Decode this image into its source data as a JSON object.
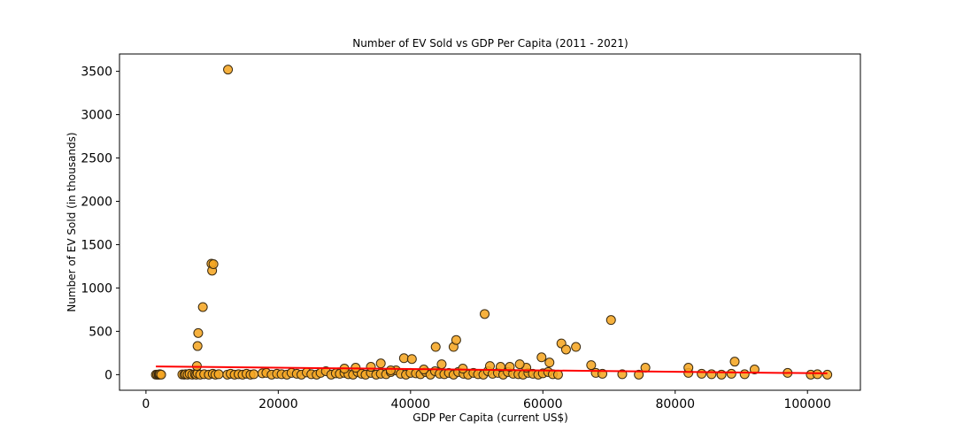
{
  "chart_data": {
    "type": "scatter",
    "title": "Number of EV Sold vs GDP Per Capita (2011 - 2021)",
    "xlabel": "GDP Per Capita (current US$)",
    "ylabel": "Number of EV Sold (in thousands)",
    "xlim": [
      -4000,
      108000
    ],
    "ylim": [
      -180,
      3700
    ],
    "xticks": [
      0,
      20000,
      40000,
      60000,
      80000,
      100000
    ],
    "yticks": [
      0,
      500,
      1000,
      1500,
      2000,
      2500,
      3000,
      3500
    ],
    "grid": false,
    "legend": "none",
    "marker_color": "#F5A623",
    "marker_edge": "#3a2a10",
    "trend_color": "#FF0000",
    "trend_line": {
      "x": [
        1500,
        103000
      ],
      "y": [
        95,
        15
      ]
    },
    "series": [
      {
        "x": [
          1500,
          1700,
          1900,
          2000,
          2100,
          2300,
          5500,
          5800,
          6000,
          6300,
          6600,
          7000,
          7400,
          7600,
          7800,
          8200,
          8800,
          9500,
          10100,
          10500,
          11000,
          12300,
          12800,
          13400,
          14000,
          14600,
          15200,
          15800,
          16300,
          17600,
          18200,
          19000,
          19800,
          20500,
          21300,
          22000,
          22800,
          23500,
          24300,
          25000,
          25800,
          26400,
          27200,
          28000,
          28700,
          29300,
          30000,
          30600,
          31300,
          32000,
          32600,
          33200,
          34000,
          34800,
          35500,
          36300,
          37000,
          37800,
          38500,
          39300,
          40000,
          40800,
          41500,
          42300,
          43000,
          43700,
          44400,
          45100,
          45800,
          46500,
          47200,
          48000,
          48700,
          49500,
          50200,
          51000,
          51700,
          52400,
          53200,
          54000,
          54700,
          55500,
          56300,
          57000,
          57800,
          58500,
          59300,
          60000,
          60800,
          61500,
          62300,
          68000,
          69000,
          72000,
          74500,
          82000,
          84000,
          85500,
          87000,
          88500,
          90500,
          97000,
          100500,
          101500,
          103000,
          7900,
          7800,
          8600,
          9900,
          10000,
          10200,
          12400,
          7700,
          35500,
          39000,
          40200,
          43800,
          46500,
          46900,
          51200,
          55000,
          57500,
          59800,
          61000,
          62800,
          63500,
          65000,
          67300,
          70300,
          75500,
          82000,
          89000,
          92000,
          30000,
          31700,
          34000,
          37000,
          42000,
          44700,
          47900,
          52000,
          53600,
          56500
        ],
        "y": [
          0,
          0,
          0,
          0,
          5,
          0,
          2,
          0,
          5,
          0,
          10,
          0,
          5,
          0,
          15,
          0,
          5,
          0,
          10,
          0,
          5,
          0,
          10,
          0,
          5,
          0,
          10,
          0,
          5,
          15,
          20,
          0,
          10,
          5,
          0,
          20,
          10,
          0,
          25,
          5,
          0,
          20,
          40,
          0,
          15,
          10,
          20,
          5,
          0,
          30,
          10,
          0,
          20,
          0,
          10,
          5,
          30,
          50,
          10,
          0,
          20,
          15,
          5,
          30,
          0,
          40,
          10,
          5,
          20,
          0,
          30,
          10,
          0,
          20,
          5,
          0,
          40,
          10,
          20,
          0,
          30,
          10,
          5,
          0,
          20,
          10,
          0,
          15,
          30,
          5,
          0,
          20,
          10,
          5,
          0,
          20,
          10,
          5,
          0,
          10,
          5,
          20,
          0,
          5,
          0,
          480,
          330,
          780,
          1280,
          1200,
          1275,
          3520,
          100,
          130,
          190,
          180,
          320,
          320,
          400,
          700,
          90,
          80,
          200,
          140,
          360,
          290,
          320,
          110,
          630,
          80,
          80,
          150,
          60,
          70,
          80,
          90,
          50,
          60,
          120,
          70,
          100,
          90,
          120
        ]
      }
    ]
  }
}
